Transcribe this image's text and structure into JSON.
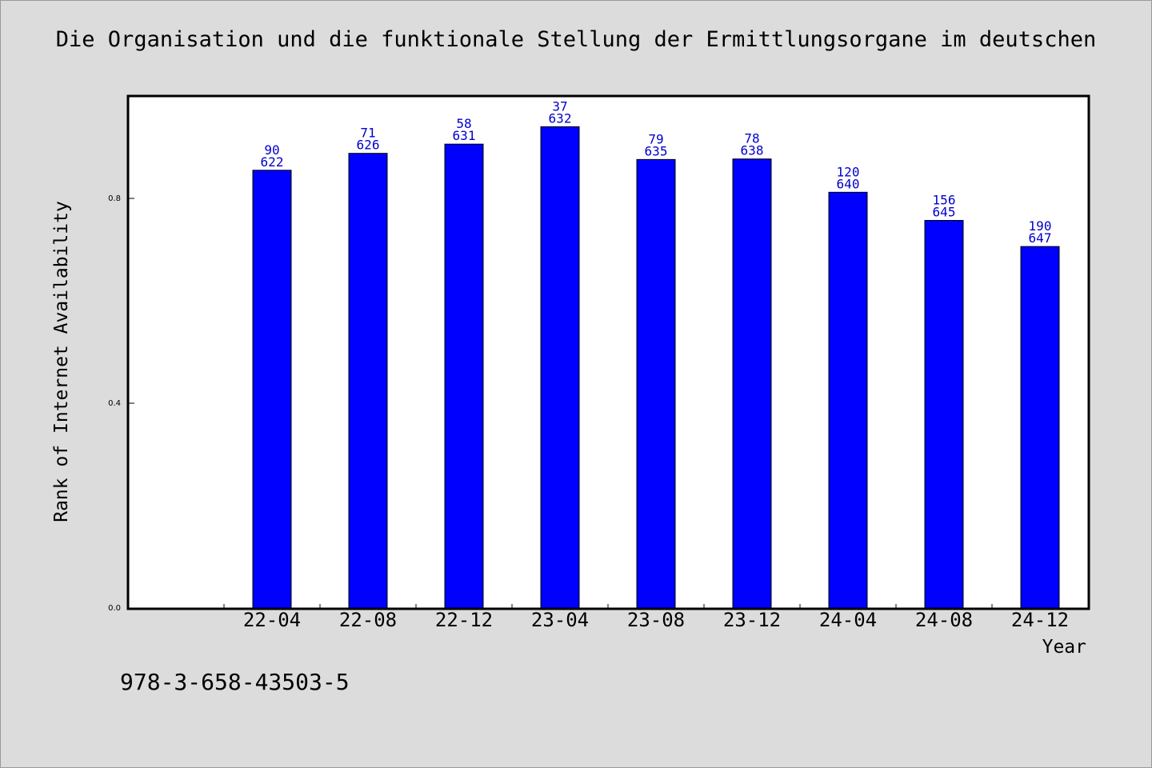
{
  "footer": {
    "isbn": "978-3-658-43503-5"
  },
  "chart_data": {
    "type": "bar",
    "title": "Die Organisation und die funktionale Stellung der Ermittlungsorgane im deutschen",
    "xlabel": "Year",
    "ylabel": "Rank of Internet Availability",
    "categories": [
      "22-04",
      "22-08",
      "22-12",
      "23-04",
      "23-08",
      "23-12",
      "24-04",
      "24-08",
      "24-12"
    ],
    "values": [
      0.855,
      0.888,
      0.906,
      0.94,
      0.876,
      0.877,
      0.812,
      0.757,
      0.706
    ],
    "labels_top": [
      "90",
      "71",
      "58",
      "37",
      "79",
      "78",
      "120",
      "156",
      "190"
    ],
    "labels_bottom": [
      "622",
      "626",
      "631",
      "632",
      "635",
      "638",
      "640",
      "645",
      "647"
    ],
    "yticks": [
      "0.0",
      "0.4",
      "0.8"
    ],
    "ylim": [
      0,
      1
    ],
    "bar_color": "#0000ff",
    "label_color": "#0000cc",
    "grid": false
  }
}
